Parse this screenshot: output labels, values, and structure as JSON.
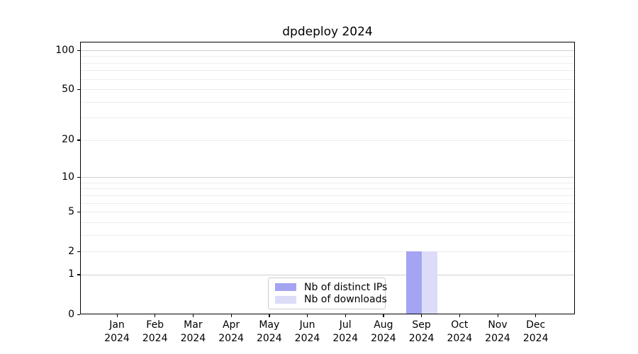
{
  "chart_data": {
    "type": "bar",
    "title": "dpdeploy 2024",
    "categories": [
      "Jan",
      "Feb",
      "Mar",
      "Apr",
      "May",
      "Jun",
      "Jul",
      "Aug",
      "Sep",
      "Oct",
      "Nov",
      "Dec"
    ],
    "x_year": "2024",
    "series": [
      {
        "name": "Nb of distinct IPs",
        "color": "#a4a4f2",
        "values": [
          0,
          0,
          0,
          0,
          0,
          0,
          0,
          0,
          2,
          0,
          0,
          0
        ]
      },
      {
        "name": "Nb of downloads",
        "color": "#dcdcf8",
        "values": [
          0,
          0,
          0,
          0,
          0,
          0,
          0,
          0,
          2,
          0,
          0,
          0
        ]
      }
    ],
    "yscale": "log1p",
    "ylim": [
      0,
      116
    ],
    "y_labeled_ticks": [
      0,
      1,
      2,
      5,
      10,
      20,
      50,
      100
    ],
    "y_major_gridlines": [
      1,
      10,
      100
    ],
    "y_minor_gridlines": [
      2,
      3,
      4,
      5,
      6,
      7,
      8,
      9,
      20,
      30,
      40,
      50,
      60,
      70,
      80,
      90
    ],
    "grid": true,
    "legend": {
      "location": "lower center"
    }
  },
  "colors": {
    "grid_major": "#d0d0d0",
    "grid_minor": "#ededed",
    "axis": "#000000",
    "legend_border": "#cccccc"
  }
}
